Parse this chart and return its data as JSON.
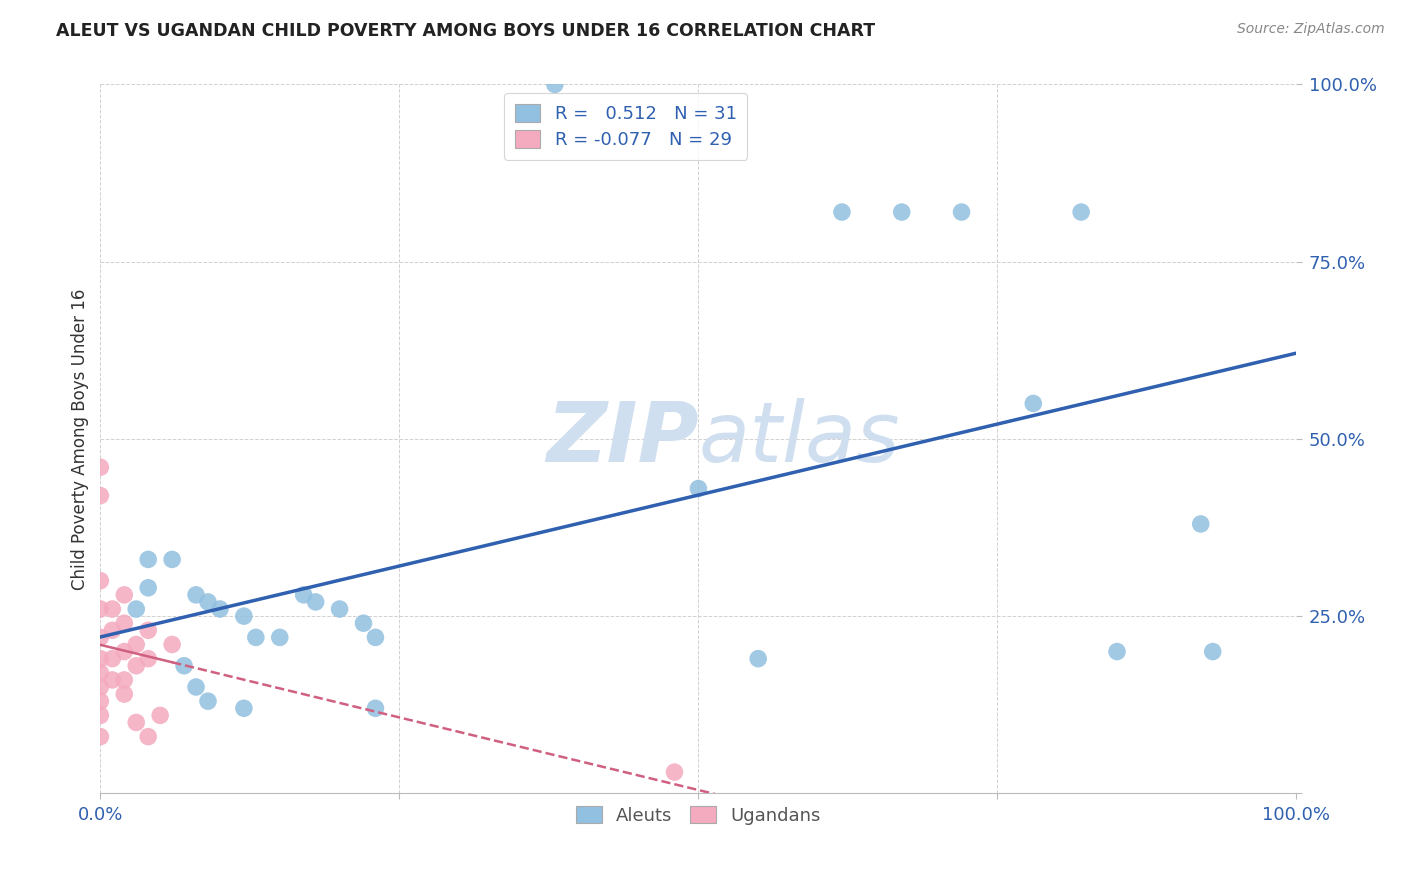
{
  "title": "ALEUT VS UGANDAN CHILD POVERTY AMONG BOYS UNDER 16 CORRELATION CHART",
  "source": "Source: ZipAtlas.com",
  "ylabel": "Child Poverty Among Boys Under 16",
  "xlim": [
    0.0,
    1.0
  ],
  "ylim": [
    0.0,
    1.0
  ],
  "aleuts_color": "#92C0E0",
  "ugandans_color": "#F4AABF",
  "trendline_aleuts_color": "#3060B0",
  "trendline_ugandans_color": "#D06080",
  "watermark_color": "#D0DFF0",
  "aleuts_x": [
    0.38,
    0.62,
    0.67,
    0.72,
    0.82,
    0.04,
    0.04,
    0.06,
    0.08,
    0.09,
    0.1,
    0.12,
    0.13,
    0.15,
    0.17,
    0.18,
    0.2,
    0.22,
    0.23,
    0.5,
    0.55,
    0.78,
    0.85,
    0.92,
    0.93,
    0.03,
    0.07,
    0.08,
    0.09,
    0.12,
    0.23
  ],
  "aleuts_y": [
    1.0,
    0.82,
    0.82,
    0.82,
    0.82,
    0.33,
    0.29,
    0.33,
    0.28,
    0.27,
    0.26,
    0.25,
    0.22,
    0.22,
    0.28,
    0.27,
    0.26,
    0.24,
    0.22,
    0.43,
    0.19,
    0.55,
    0.2,
    0.38,
    0.2,
    0.26,
    0.18,
    0.15,
    0.13,
    0.12,
    0.12
  ],
  "ugandans_x": [
    0.0,
    0.0,
    0.0,
    0.0,
    0.0,
    0.0,
    0.0,
    0.0,
    0.0,
    0.0,
    0.0,
    0.01,
    0.01,
    0.01,
    0.01,
    0.02,
    0.02,
    0.02,
    0.02,
    0.02,
    0.03,
    0.03,
    0.03,
    0.04,
    0.04,
    0.04,
    0.05,
    0.06,
    0.48
  ],
  "ugandans_y": [
    0.46,
    0.42,
    0.3,
    0.26,
    0.22,
    0.19,
    0.17,
    0.15,
    0.13,
    0.11,
    0.08,
    0.26,
    0.23,
    0.19,
    0.16,
    0.28,
    0.24,
    0.2,
    0.16,
    0.14,
    0.21,
    0.18,
    0.1,
    0.23,
    0.19,
    0.08,
    0.11,
    0.21,
    0.03
  ],
  "trendline_aleuts_x0": 0.0,
  "trendline_aleuts_x1": 1.0,
  "trendline_ugandans_x0": 0.0,
  "trendline_ugandans_x1": 0.55,
  "background_color": "#ffffff",
  "grid_color": "#cccccc",
  "tick_color": "#3060B0",
  "title_color": "#222222",
  "source_color": "#888888",
  "ylabel_color": "#333333"
}
